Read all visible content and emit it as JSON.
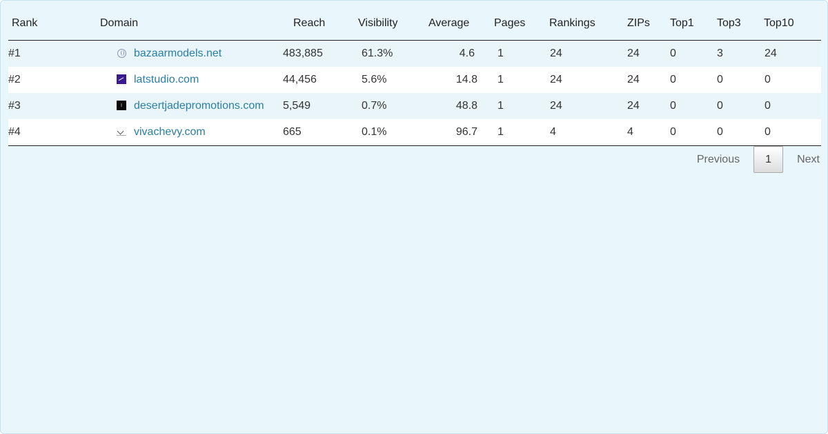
{
  "table": {
    "headers": {
      "rank": "Rank",
      "domain": "Domain",
      "reach": "Reach",
      "visibility": "Visibility",
      "average": "Average",
      "pages": "Pages",
      "rankings": "Rankings",
      "zips": "ZIPs",
      "top1": "Top1",
      "top3": "Top3",
      "top10": "Top10"
    },
    "rows": [
      {
        "rank": "#1",
        "icon": "globe-icon",
        "domain": "bazaarmodels.net",
        "reach": "483,885",
        "visibility": "61.3%",
        "average": "4.6",
        "pages": "1",
        "rankings": "24",
        "zips": "24",
        "top1": "0",
        "top3": "3",
        "top10": "24"
      },
      {
        "rank": "#2",
        "icon": "purple-chart-favicon",
        "domain": "latstudio.com",
        "reach": "44,456",
        "visibility": "5.6%",
        "average": "14.8",
        "pages": "1",
        "rankings": "24",
        "zips": "24",
        "top1": "0",
        "top3": "0",
        "top10": "0"
      },
      {
        "rank": "#3",
        "icon": "black-square-favicon",
        "domain": "desertjadepromotions.com",
        "reach": "5,549",
        "visibility": "0.7%",
        "average": "48.8",
        "pages": "1",
        "rankings": "24",
        "zips": "24",
        "top1": "0",
        "top3": "0",
        "top10": "0"
      },
      {
        "rank": "#4",
        "icon": "chevron-favicon",
        "domain": "vivachevy.com",
        "reach": "665",
        "visibility": "0.1%",
        "average": "96.7",
        "pages": "1",
        "rankings": "4",
        "zips": "4",
        "top1": "0",
        "top3": "0",
        "top10": "0"
      }
    ]
  },
  "pagination": {
    "previous_label": "Previous",
    "current_page": "1",
    "next_label": "Next"
  },
  "colors": {
    "panel_background": "#e9f6fc",
    "link": "#2a7fa6",
    "striped_row": "#e9f5f9"
  }
}
